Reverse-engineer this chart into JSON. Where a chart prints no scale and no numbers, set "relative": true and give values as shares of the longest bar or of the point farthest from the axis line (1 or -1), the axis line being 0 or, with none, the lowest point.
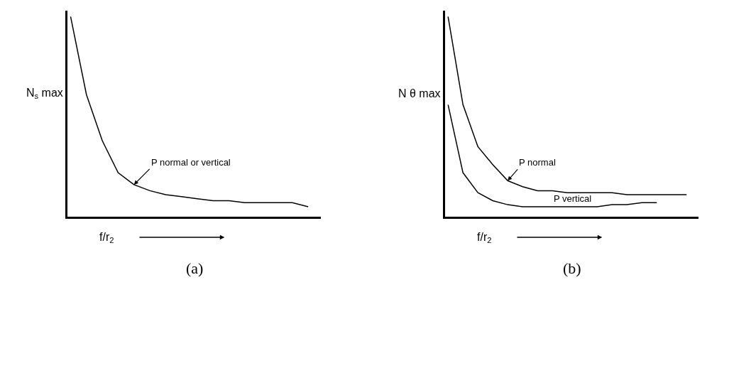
{
  "chart_data": [
    {
      "type": "line",
      "relative": true,
      "xlabel": "f/r$_{2}$",
      "ylabel": "N$_{s}$ max",
      "annotations": [
        "(a)"
      ],
      "grid": false,
      "legend": false,
      "marker": "none",
      "line_style": "solid",
      "categories": [
        null,
        null,
        null,
        null,
        null,
        null,
        null,
        null,
        null,
        null,
        null,
        null,
        null,
        null,
        null,
        null
      ],
      "series": [
        {
          "name": "P normal or vertical",
          "color": "#000000",
          "values": [
            1.0,
            0.61,
            0.38,
            0.22,
            0.16,
            0.13,
            0.11,
            0.1,
            0.09,
            0.08,
            0.08,
            0.07,
            0.07,
            0.07,
            0.07,
            0.05
          ]
        }
      ]
    },
    {
      "type": "line",
      "relative": true,
      "xlabel": "f/r$_{2}$",
      "ylabel": "N θ max",
      "annotations": [
        "(b)"
      ],
      "grid": false,
      "legend": false,
      "marker": "none",
      "line_style": "solid",
      "categories": [
        null,
        null,
        null,
        null,
        null,
        null,
        null,
        null,
        null,
        null,
        null,
        null,
        null,
        null,
        null,
        null,
        null
      ],
      "series": [
        {
          "name": "P normal",
          "color": "#000000",
          "values": [
            1.0,
            0.56,
            0.35,
            0.26,
            0.18,
            0.15,
            0.13,
            0.13,
            0.12,
            0.12,
            0.12,
            0.12,
            0.11,
            0.11,
            0.11,
            0.11,
            0.11
          ]
        },
        {
          "name": "P vertical",
          "color": "#000000",
          "values": [
            0.56,
            0.22,
            0.12,
            0.08,
            0.06,
            0.05,
            0.05,
            0.05,
            0.05,
            0.05,
            0.05,
            0.06,
            0.06,
            0.07,
            0.07,
            null,
            null
          ]
        }
      ]
    }
  ]
}
